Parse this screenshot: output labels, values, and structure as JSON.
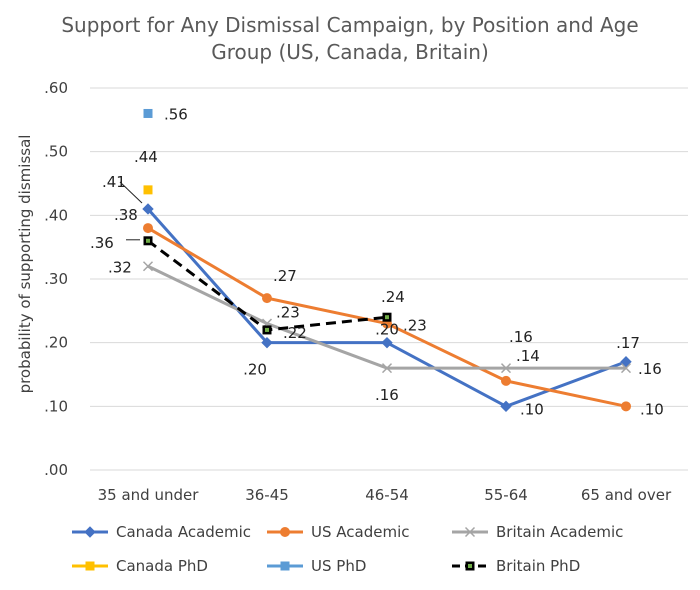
{
  "chart_data": {
    "type": "line",
    "title_line1": "Support for Any Dismissal Campaign, by Position and Age",
    "title_line2": "Group (US, Canada, Britain)",
    "ylabel": "probability of supporting dismissal",
    "xlabel": "",
    "categories": [
      "35 and under",
      "36-45",
      "46-54",
      "55-64",
      "65 and over"
    ],
    "yticks": [
      ".00",
      ".10",
      ".20",
      ".30",
      ".40",
      ".50",
      ".60"
    ],
    "ylim": [
      0,
      0.6
    ],
    "grid": true,
    "legend_position": "bottom",
    "series": [
      {
        "name": "Canada Academic",
        "color": "#4472C4",
        "marker": "diamond",
        "dash": false,
        "values": [
          0.41,
          0.2,
          0.2,
          0.1,
          0.17
        ],
        "labels": [
          ".41",
          ".20",
          ".20",
          ".10",
          ".17"
        ]
      },
      {
        "name": "US Academic",
        "color": "#ED7D31",
        "marker": "circle",
        "dash": false,
        "values": [
          0.38,
          0.27,
          0.23,
          0.14,
          0.1
        ],
        "labels": [
          ".38",
          ".27",
          ".23",
          ".14",
          ".10"
        ]
      },
      {
        "name": "Britain Academic",
        "color": "#A5A5A5",
        "marker": "x",
        "dash": false,
        "values": [
          0.32,
          0.23,
          0.16,
          0.16,
          0.16
        ],
        "labels": [
          ".32",
          ".23",
          ".16",
          ".16",
          ".16"
        ]
      },
      {
        "name": "Canada PhD",
        "color": "#FFC000",
        "marker": "square",
        "dash": false,
        "values": [
          0.44,
          null,
          null,
          null,
          null
        ],
        "labels": [
          ".44",
          null,
          null,
          null,
          null
        ]
      },
      {
        "name": "US PhD",
        "color": "#5B9BD5",
        "marker": "square",
        "dash": false,
        "values": [
          0.56,
          null,
          null,
          null,
          null
        ],
        "labels": [
          ".56",
          null,
          null,
          null,
          null
        ]
      },
      {
        "name": "Britain PhD",
        "color": "#000000",
        "marker": "square-green",
        "dash": true,
        "values": [
          0.36,
          0.22,
          0.24,
          null,
          null
        ],
        "labels": [
          ".36",
          ".22",
          ".24",
          null,
          null
        ]
      }
    ]
  }
}
